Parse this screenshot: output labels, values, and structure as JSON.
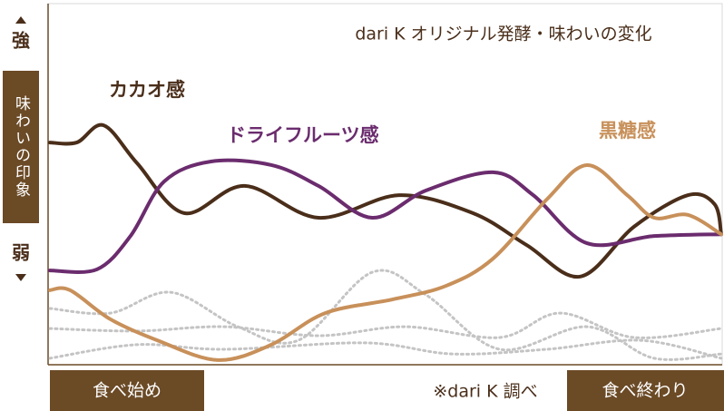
{
  "chart_data": {
    "type": "line",
    "title": "dari K オリジナル発酵・味わいの変化",
    "y_label_high": "強",
    "y_label": "味わいの印象",
    "y_label_low": "弱",
    "x_label_start": "食べ始め",
    "x_label_end": "食べ終わり",
    "note": "※dari K 調べ",
    "xlim": [
      0,
      100
    ],
    "ylim": [
      0,
      100
    ],
    "series": [
      {
        "name": "カカオ感",
        "color": "#4a2e1a",
        "x": [
          0,
          4,
          8,
          13,
          20,
          29,
          40,
          52,
          63,
          71,
          79,
          87,
          95,
          99,
          100
        ],
        "values": [
          61.5,
          61.5,
          66.3,
          55.7,
          41.8,
          49.4,
          40.5,
          46.8,
          41.8,
          32.9,
          24.1,
          38,
          46.8,
          44.3,
          35.9
        ]
      },
      {
        "name": "ドライフルーツ感",
        "color": "#6b2c6e",
        "x": [
          0,
          7,
          12,
          17,
          24,
          33,
          40,
          48,
          56,
          66,
          72,
          80,
          90,
          100
        ],
        "values": [
          25.8,
          26.1,
          35.4,
          50.6,
          56.2,
          55.2,
          49.4,
          40.5,
          48.1,
          53.2,
          46.8,
          33.4,
          35.4,
          35.9
        ]
      },
      {
        "name": "黒糖感",
        "color": "#c8905a",
        "x": [
          0,
          3,
          9,
          16,
          25,
          33,
          41,
          51,
          59,
          66,
          74,
          80,
          86,
          90,
          95,
          100
        ],
        "values": [
          20.3,
          20.3,
          12.2,
          6.3,
          0.8,
          5.1,
          13.9,
          17.7,
          21.5,
          29.1,
          45.6,
          55.2,
          46.8,
          40.5,
          41.3,
          35.9
        ]
      },
      {
        "color": "#c4c4c4",
        "dashed": true,
        "x": [
          0,
          9,
          18,
          28,
          37,
          48,
          56,
          67,
          80,
          90,
          100
        ],
        "values": [
          15.2,
          13.9,
          19.7,
          10.1,
          6.3,
          25.3,
          19,
          3.8,
          10.1,
          1.3,
          2.5
        ]
      },
      {
        "color": "#c4c4c4",
        "dashed": true,
        "x": [
          0,
          13,
          26,
          40,
          53,
          67,
          76,
          87,
          100
        ],
        "values": [
          9.6,
          8.9,
          10.1,
          7.6,
          10.1,
          7.1,
          13.9,
          7.1,
          9.6
        ]
      },
      {
        "color": "#c4c4c4",
        "dashed": true,
        "x": [
          0,
          13,
          26,
          47,
          60,
          74,
          88,
          100
        ],
        "values": [
          1.3,
          5.1,
          3.8,
          5.6,
          2.5,
          3.8,
          6.3,
          1.3
        ]
      }
    ]
  }
}
